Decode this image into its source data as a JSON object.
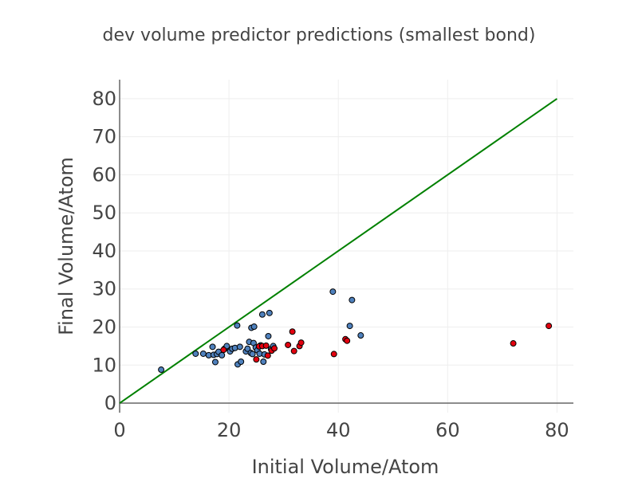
{
  "chart_data": {
    "type": "scatter",
    "title": "dev volume predictor predictions (smallest bond)",
    "xlabel": "Initial Volume/Atom",
    "ylabel": "Final Volume/Atom",
    "xlim": [
      0,
      83
    ],
    "ylim": [
      -2.5,
      85
    ],
    "x_ticks": [
      0,
      20,
      40,
      60,
      80
    ],
    "y_ticks": [
      0,
      10,
      20,
      30,
      40,
      50,
      60,
      70,
      80
    ],
    "grid": true,
    "legend": "none",
    "colors": {
      "blue_points": "#4f81bd",
      "red_points": "#e3000f",
      "reference_line": "#008000",
      "marker_outline": "#000000"
    },
    "series": [
      {
        "color": "#4f81bd",
        "points": [
          [
            7.6,
            8.8
          ],
          [
            13.9,
            13.0
          ],
          [
            15.3,
            13.0
          ],
          [
            16.3,
            12.6
          ],
          [
            17.0,
            14.8
          ],
          [
            17.2,
            12.7
          ],
          [
            17.5,
            10.8
          ],
          [
            17.8,
            12.9
          ],
          [
            18.1,
            13.5
          ],
          [
            18.7,
            12.6
          ],
          [
            19.2,
            14.3
          ],
          [
            19.6,
            15.0
          ],
          [
            20.2,
            13.6
          ],
          [
            20.6,
            14.3
          ],
          [
            21.1,
            14.5
          ],
          [
            21.5,
            20.4
          ],
          [
            21.6,
            10.2
          ],
          [
            22.0,
            14.8
          ],
          [
            22.2,
            10.9
          ],
          [
            23.1,
            13.6
          ],
          [
            23.4,
            14.3
          ],
          [
            23.7,
            16.1
          ],
          [
            24.0,
            13.2
          ],
          [
            24.1,
            19.8
          ],
          [
            24.3,
            12.9
          ],
          [
            24.5,
            15.8
          ],
          [
            24.6,
            20.1
          ],
          [
            24.9,
            14.6
          ],
          [
            25.2,
            13.9
          ],
          [
            25.6,
            13.0
          ],
          [
            25.8,
            15.2
          ],
          [
            26.1,
            23.3
          ],
          [
            26.3,
            10.9
          ],
          [
            26.5,
            12.8
          ],
          [
            27.2,
            17.6
          ],
          [
            27.4,
            23.7
          ],
          [
            27.7,
            14.2
          ],
          [
            28.1,
            15.0
          ],
          [
            39.0,
            29.3
          ],
          [
            42.1,
            20.3
          ],
          [
            42.5,
            27.1
          ],
          [
            44.1,
            17.8
          ]
        ]
      },
      {
        "color": "#e3000f",
        "points": [
          [
            19.0,
            14.0
          ],
          [
            25.0,
            11.5
          ],
          [
            25.5,
            14.9
          ],
          [
            26.1,
            15.0
          ],
          [
            26.8,
            15.1
          ],
          [
            27.1,
            12.5
          ],
          [
            27.8,
            13.8
          ],
          [
            28.3,
            14.4
          ],
          [
            30.8,
            15.3
          ],
          [
            31.6,
            18.8
          ],
          [
            31.9,
            13.7
          ],
          [
            32.9,
            15.0
          ],
          [
            33.2,
            15.9
          ],
          [
            39.2,
            12.9
          ],
          [
            41.3,
            16.8
          ],
          [
            41.6,
            16.4
          ],
          [
            72.0,
            15.7
          ],
          [
            78.5,
            20.3
          ]
        ]
      }
    ],
    "reference_line": {
      "x": [
        0,
        80
      ],
      "y": [
        0,
        80
      ]
    }
  }
}
